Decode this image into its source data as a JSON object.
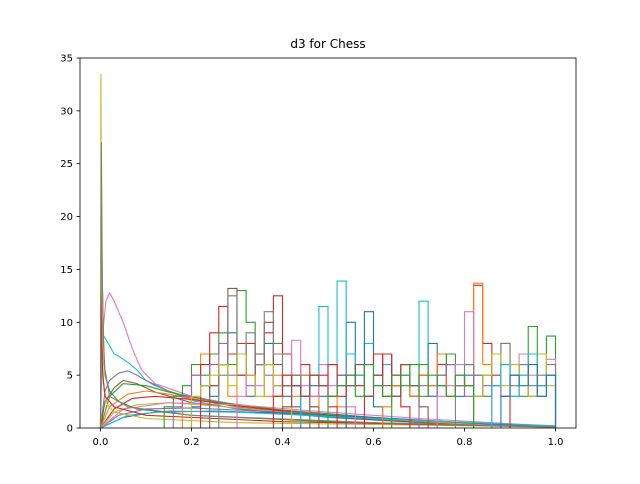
{
  "chart_data": {
    "type": "line",
    "title": "d3 for Chess",
    "xlabel": "",
    "ylabel": "",
    "xlim": [
      -0.045,
      1.045
    ],
    "ylim": [
      0,
      35
    ],
    "xticks": [
      0.0,
      0.2,
      0.4,
      0.6,
      0.8,
      1.0
    ],
    "xtick_labels": [
      "0.0",
      "0.2",
      "0.4",
      "0.6",
      "0.8",
      "1.0"
    ],
    "yticks": [
      0,
      5,
      10,
      15,
      20,
      25,
      30,
      35
    ],
    "ytick_labels": [
      "0",
      "5",
      "10",
      "15",
      "20",
      "25",
      "30",
      "35"
    ],
    "grid": false,
    "legend": "none",
    "colors": [
      "#1f77b4",
      "#ff7f0e",
      "#2ca02c",
      "#d62728",
      "#9467bd",
      "#8c564b",
      "#e377c2",
      "#7f7f7f",
      "#bcbd22",
      "#17becf"
    ],
    "series": [
      {
        "style": "curve",
        "color": "#e377c2",
        "x": [
          0.0,
          0.005,
          0.012,
          0.02,
          0.03,
          0.05,
          0.07,
          0.09,
          0.12,
          0.16,
          0.2,
          0.3,
          0.4,
          0.5,
          0.6,
          0.7,
          0.8,
          0.9,
          1.0
        ],
        "y": [
          0,
          9.0,
          12.0,
          12.8,
          12.0,
          10.0,
          7.5,
          5.5,
          4.2,
          3.6,
          3.0,
          2.2,
          1.6,
          1.2,
          0.9,
          0.6,
          0.4,
          0.2,
          0.1
        ]
      },
      {
        "style": "curve",
        "color": "#17becf",
        "x": [
          0.0,
          0.003,
          0.01,
          0.02,
          0.03,
          0.04,
          0.05,
          0.06,
          0.08,
          0.1,
          0.12,
          0.15,
          0.2,
          0.3,
          0.5,
          0.7,
          1.0
        ],
        "y": [
          0,
          9.0,
          8.5,
          7.8,
          7.0,
          6.8,
          6.5,
          6.2,
          5.5,
          4.5,
          4.0,
          3.5,
          2.6,
          1.8,
          1.0,
          0.5,
          0.1
        ]
      },
      {
        "style": "curve",
        "color": "#7f7f7f",
        "x": [
          0.0,
          0.01,
          0.02,
          0.04,
          0.06,
          0.08,
          0.1,
          0.15,
          0.2,
          0.3,
          0.45,
          0.6,
          0.8,
          1.0
        ],
        "y": [
          0,
          3.5,
          4.5,
          5.2,
          5.4,
          5.0,
          4.5,
          3.5,
          2.8,
          2.0,
          1.3,
          0.8,
          0.4,
          0.1
        ]
      },
      {
        "style": "curve",
        "color": "#8c564b",
        "x": [
          0.0,
          0.01,
          0.03,
          0.05,
          0.08,
          0.12,
          0.2,
          0.35,
          0.55,
          0.8,
          1.0
        ],
        "y": [
          0,
          2.5,
          3.8,
          4.5,
          4.2,
          3.4,
          2.4,
          1.6,
          0.9,
          0.3,
          0.1
        ]
      },
      {
        "style": "curve",
        "color": "#2ca02c",
        "x": [
          0.0,
          0.02,
          0.05,
          0.1,
          0.15,
          0.25,
          0.4,
          0.6,
          0.8,
          1.0
        ],
        "y": [
          0,
          3.0,
          4.2,
          4.0,
          3.4,
          2.5,
          1.7,
          1.0,
          0.5,
          0.1
        ]
      },
      {
        "style": "curve",
        "color": "#ff7f0e",
        "x": [
          0.0,
          0.02,
          0.06,
          0.1,
          0.15,
          0.25,
          0.4,
          0.6,
          0.8,
          1.0
        ],
        "y": [
          0,
          2.0,
          3.2,
          3.5,
          3.2,
          2.4,
          1.6,
          0.9,
          0.4,
          0.1
        ]
      },
      {
        "style": "curve",
        "color": "#d62728",
        "x": [
          0.0,
          0.03,
          0.07,
          0.12,
          0.2,
          0.3,
          0.45,
          0.6,
          0.8,
          1.0
        ],
        "y": [
          0,
          1.8,
          2.8,
          3.0,
          2.7,
          2.1,
          1.4,
          0.9,
          0.4,
          0.1
        ]
      },
      {
        "style": "curve",
        "color": "#bcbd22",
        "x": [
          0.0,
          0.03,
          0.08,
          0.15,
          0.25,
          0.4,
          0.6,
          0.8,
          1.0
        ],
        "y": [
          0,
          1.5,
          2.2,
          2.4,
          2.1,
          1.5,
          0.9,
          0.4,
          0.1
        ]
      },
      {
        "style": "curve",
        "color": "#9467bd",
        "x": [
          0.0,
          0.04,
          0.1,
          0.2,
          0.35,
          0.5,
          0.7,
          0.9,
          1.0
        ],
        "y": [
          0,
          1.2,
          1.8,
          1.9,
          1.6,
          1.2,
          0.7,
          0.3,
          0.1
        ]
      },
      {
        "style": "curve",
        "color": "#1f77b4",
        "x": [
          0.0,
          0.05,
          0.12,
          0.25,
          0.4,
          0.6,
          0.8,
          1.0
        ],
        "y": [
          0,
          1.0,
          1.5,
          1.6,
          1.4,
          1.0,
          0.5,
          0.1
        ]
      },
      {
        "style": "curve",
        "color": "#e377c2",
        "x": [
          0.0,
          0.05,
          0.15,
          0.3,
          0.5,
          0.7,
          0.9,
          1.0
        ],
        "y": [
          0,
          1.8,
          2.4,
          2.2,
          1.5,
          0.9,
          0.4,
          0.2
        ]
      },
      {
        "style": "curve",
        "color": "#17becf",
        "x": [
          0.0,
          0.06,
          0.15,
          0.3,
          0.5,
          0.7,
          1.0
        ],
        "y": [
          0,
          1.2,
          1.6,
          1.5,
          1.1,
          0.7,
          0.2
        ]
      },
      {
        "style": "curve",
        "color": "#2ca02c",
        "x": [
          0.0,
          0.002,
          0.004,
          0.006,
          0.01,
          0.02,
          0.04,
          0.08,
          0.2,
          0.5,
          1.0
        ],
        "y": [
          0,
          20.5,
          14.0,
          9.0,
          5.0,
          3.5,
          2.5,
          1.8,
          1.2,
          0.6,
          0.1
        ]
      },
      {
        "style": "curve",
        "color": "#bcbd22",
        "x": [
          0.0,
          0.001,
          0.002,
          0.003,
          0.005,
          0.008,
          0.015,
          0.03,
          0.1,
          0.3,
          1.0
        ],
        "y": [
          0,
          33.5,
          22.0,
          12.0,
          6.0,
          3.5,
          2.2,
          1.5,
          0.9,
          0.5,
          0.1
        ]
      },
      {
        "style": "curve",
        "color": "#d62728",
        "x": [
          0.0,
          0.001,
          0.003,
          0.005,
          0.01,
          0.03,
          0.1,
          0.4,
          1.0
        ],
        "y": [
          0,
          13.0,
          8.0,
          5.0,
          3.0,
          2.0,
          1.2,
          0.6,
          0.1
        ]
      },
      {
        "style": "curve",
        "color": "#7f7f7f",
        "x": [
          0.0,
          0.002,
          0.004,
          0.008,
          0.02,
          0.06,
          0.2,
          0.6,
          1.0
        ],
        "y": [
          0,
          27.0,
          14.0,
          6.0,
          3.0,
          2.0,
          1.2,
          0.5,
          0.1
        ]
      },
      {
        "style": "step",
        "color": "#1f77b4",
        "x": [
          0.2,
          0.22,
          0.24,
          0.26,
          0.28,
          0.3,
          0.32,
          0.34,
          0.36,
          0.38,
          0.4,
          0.42,
          0.44,
          0.46,
          0.48,
          0.5,
          0.52,
          0.54,
          0.56,
          0.58,
          0.6
        ],
        "y": [
          2,
          4,
          3,
          6,
          9,
          5,
          3,
          7,
          8,
          4,
          3,
          2,
          5,
          4,
          3,
          6,
          4,
          10,
          5,
          3,
          2
        ]
      },
      {
        "style": "step",
        "color": "#ff7f0e",
        "x": [
          0.18,
          0.2,
          0.22,
          0.24,
          0.26,
          0.28,
          0.3,
          0.32,
          0.34,
          0.36,
          0.38,
          0.4,
          0.42,
          0.44,
          0.46,
          0.48,
          0.5,
          0.52
        ],
        "y": [
          3,
          5,
          7,
          4,
          6,
          3,
          8,
          5,
          6,
          3,
          5,
          4,
          3,
          5,
          2,
          4,
          3,
          2
        ]
      },
      {
        "style": "step",
        "color": "#2ca02c",
        "x": [
          0.14,
          0.16,
          0.18,
          0.2,
          0.22,
          0.24,
          0.26,
          0.28,
          0.3,
          0.32,
          0.34,
          0.36,
          0.38,
          0.4,
          0.42,
          0.44
        ],
        "y": [
          2,
          3,
          4,
          6,
          5,
          7,
          9,
          6,
          13,
          10,
          7,
          6,
          8,
          4,
          5,
          3
        ]
      },
      {
        "style": "step",
        "color": "#d62728",
        "x": [
          0.22,
          0.24,
          0.26,
          0.28,
          0.3,
          0.32,
          0.34,
          0.36,
          0.38,
          0.4,
          0.42,
          0.44,
          0.46,
          0.48,
          0.5
        ],
        "y": [
          6,
          9,
          11.5,
          7,
          5,
          8,
          6,
          9,
          12.5,
          7,
          4,
          6,
          3,
          5,
          2
        ]
      },
      {
        "style": "step",
        "color": "#9467bd",
        "x": [
          0.16,
          0.18,
          0.2,
          0.22,
          0.24,
          0.26,
          0.28,
          0.3,
          0.32,
          0.34,
          0.36,
          0.38,
          0.4,
          0.42
        ],
        "y": [
          2,
          3,
          5,
          4,
          6,
          8,
          5,
          7,
          4,
          6,
          5,
          3,
          4,
          2
        ]
      },
      {
        "style": "step",
        "color": "#8c564b",
        "x": [
          0.24,
          0.26,
          0.28,
          0.3,
          0.32,
          0.34,
          0.36,
          0.38,
          0.4,
          0.42,
          0.44,
          0.46
        ],
        "y": [
          4,
          6,
          13.2,
          8,
          5,
          7,
          10,
          6,
          4,
          5,
          3,
          2
        ]
      },
      {
        "style": "step",
        "color": "#e377c2",
        "x": [
          0.3,
          0.32,
          0.34,
          0.36,
          0.38,
          0.4,
          0.42,
          0.44,
          0.46,
          0.48,
          0.5,
          0.52,
          0.54
        ],
        "y": [
          3,
          5,
          4,
          6,
          3,
          5,
          8.3,
          4,
          3,
          6,
          4,
          5,
          2
        ]
      },
      {
        "style": "step",
        "color": "#7f7f7f",
        "x": [
          0.26,
          0.28,
          0.3,
          0.32,
          0.34,
          0.36,
          0.38,
          0.4,
          0.42,
          0.44
        ],
        "y": [
          5,
          12.5,
          7,
          9,
          6,
          11,
          7,
          4,
          5,
          3
        ]
      },
      {
        "style": "step",
        "color": "#bcbd22",
        "x": [
          0.2,
          0.22,
          0.24,
          0.26,
          0.28,
          0.3,
          0.32,
          0.34,
          0.36,
          0.38,
          0.4
        ],
        "y": [
          3,
          4,
          5,
          6,
          4,
          7,
          5,
          3,
          6,
          4,
          2
        ]
      },
      {
        "style": "step",
        "color": "#17becf",
        "x": [
          0.44,
          0.46,
          0.48,
          0.5,
          0.52,
          0.54,
          0.56,
          0.58,
          0.6,
          0.62,
          0.64,
          0.66,
          0.68,
          0.7,
          0.72
        ],
        "y": [
          3,
          5,
          11.5,
          6,
          13.9,
          7,
          5,
          8,
          4,
          6,
          3,
          5,
          4,
          12,
          3
        ]
      },
      {
        "style": "step",
        "color": "#1f77b4",
        "x": [
          0.54,
          0.56,
          0.58,
          0.6,
          0.62,
          0.64,
          0.66,
          0.68,
          0.7,
          0.72,
          0.74,
          0.76,
          0.78,
          0.8
        ],
        "y": [
          4,
          6,
          11,
          5,
          7,
          4,
          6,
          3,
          5,
          8,
          4,
          6,
          3,
          5
        ]
      },
      {
        "style": "step",
        "color": "#d62728",
        "x": [
          0.58,
          0.6,
          0.62,
          0.64,
          0.66,
          0.68,
          0.7,
          0.72,
          0.74,
          0.76,
          0.78,
          0.8,
          0.82,
          0.84,
          0.86,
          0.88
        ],
        "y": [
          3,
          5,
          7,
          4,
          6,
          3,
          5,
          4,
          6,
          3,
          5,
          4,
          13.5,
          8,
          5,
          3
        ]
      },
      {
        "style": "step",
        "color": "#ff7f0e",
        "x": [
          0.62,
          0.64,
          0.66,
          0.68,
          0.7,
          0.72,
          0.74,
          0.76,
          0.78,
          0.8,
          0.82,
          0.84
        ],
        "y": [
          2,
          4,
          6,
          3,
          5,
          4,
          7,
          3,
          5,
          4,
          13.7,
          6
        ]
      },
      {
        "style": "step",
        "color": "#2ca02c",
        "x": [
          0.64,
          0.66,
          0.68,
          0.7,
          0.72,
          0.74,
          0.76,
          0.78,
          0.8,
          0.82,
          0.84,
          0.86,
          0.88,
          0.9,
          0.92,
          0.94,
          0.96,
          0.98
        ],
        "y": [
          3,
          5,
          4,
          6,
          3,
          5,
          7,
          4,
          6,
          3,
          5,
          4,
          8,
          5,
          3,
          9.6,
          4,
          8.7
        ]
      },
      {
        "style": "step",
        "color": "#9467bd",
        "x": [
          0.7,
          0.72,
          0.74,
          0.76,
          0.78,
          0.8,
          0.82,
          0.84,
          0.86,
          0.88,
          0.9,
          0.92,
          0.94,
          0.96,
          0.98
        ],
        "y": [
          4,
          3,
          5,
          6,
          4,
          3,
          5,
          4,
          7,
          3,
          5,
          6,
          4,
          3,
          5
        ]
      },
      {
        "style": "step",
        "color": "#e377c2",
        "x": [
          0.74,
          0.76,
          0.78,
          0.8,
          0.82,
          0.84,
          0.86,
          0.88,
          0.9,
          0.92,
          0.94,
          0.96,
          0.98
        ],
        "y": [
          3,
          4,
          6,
          11,
          5,
          3,
          4,
          6,
          3,
          7,
          5,
          4,
          6.5
        ]
      },
      {
        "style": "step",
        "color": "#7f7f7f",
        "x": [
          0.78,
          0.8,
          0.82,
          0.84,
          0.86,
          0.88,
          0.9,
          0.92,
          0.94,
          0.96,
          0.98
        ],
        "y": [
          4,
          6,
          5,
          3,
          7,
          8,
          4,
          6,
          3,
          5,
          6
        ]
      },
      {
        "style": "step",
        "color": "#bcbd22",
        "x": [
          0.82,
          0.84,
          0.86,
          0.88,
          0.9,
          0.92,
          0.94,
          0.96,
          0.98
        ],
        "y": [
          3,
          5,
          7,
          4,
          6,
          5,
          3,
          7,
          4
        ]
      },
      {
        "style": "step",
        "color": "#17becf",
        "x": [
          0.86,
          0.88,
          0.9,
          0.92,
          0.94,
          0.96,
          0.98
        ],
        "y": [
          4,
          6,
          3,
          5,
          7,
          4,
          5
        ]
      },
      {
        "style": "step",
        "color": "#1f77b4",
        "x": [
          0.88,
          0.9,
          0.92,
          0.94,
          0.96,
          0.98
        ],
        "y": [
          3,
          5,
          4,
          6,
          3,
          5
        ]
      },
      {
        "style": "step",
        "color": "#d62728",
        "x": [
          0.38,
          0.4,
          0.42,
          0.44,
          0.46,
          0.48,
          0.5,
          0.52,
          0.54,
          0.56,
          0.58,
          0.6,
          0.62,
          0.64,
          0.66
        ],
        "y": [
          3,
          5,
          4,
          3,
          5,
          4,
          6,
          3,
          5,
          4,
          6,
          7,
          3,
          5,
          2
        ]
      },
      {
        "style": "step",
        "color": "#8c564b",
        "x": [
          0.4,
          0.42,
          0.44,
          0.46,
          0.48,
          0.5,
          0.52,
          0.54,
          0.56,
          0.58,
          0.6,
          0.62,
          0.64,
          0.66,
          0.68,
          0.7
        ],
        "y": [
          2,
          4,
          3,
          5,
          4,
          3,
          5,
          4,
          6,
          3,
          5,
          4,
          3,
          6,
          4,
          2
        ]
      },
      {
        "style": "step",
        "color": "#2ca02c",
        "x": [
          0.5,
          0.52,
          0.54,
          0.56,
          0.58,
          0.6,
          0.62,
          0.64,
          0.66,
          0.68,
          0.7,
          0.72,
          0.74,
          0.76,
          0.78,
          0.8
        ],
        "y": [
          3,
          4,
          5,
          3,
          6,
          4,
          3,
          5,
          4,
          6,
          3,
          5,
          4,
          3,
          5,
          4
        ]
      }
    ]
  }
}
